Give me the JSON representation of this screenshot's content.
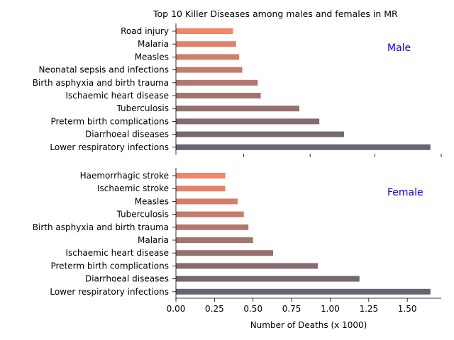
{
  "chart_data": {
    "type": "bar",
    "orientation": "horizontal",
    "title": "Top 10 Killer Diseases among males and females in MR",
    "xlabel": "Number of Deaths (x 1000)",
    "xlim": [
      0,
      1.72
    ],
    "xticks": [
      "0.00",
      "0.25",
      "0.50",
      "0.75",
      "1.00",
      "1.25",
      "1.50"
    ],
    "xtick_values": [
      0,
      0.25,
      0.5,
      0.75,
      1.0,
      1.25,
      1.5
    ],
    "grid": false,
    "label_color": "#0000ff",
    "bar_color_start": "#f0856a",
    "bar_color_end": "#666670",
    "panels": [
      {
        "label": "Male",
        "categories": [
          "Road injury",
          "Malaria",
          "Measles",
          "Neonatal sepsis and infections",
          "Birth asphyxia and birth trauma",
          "Ischaemic heart disease",
          "Tuberculosis",
          "Preterm birth complications",
          "Diarrhoeal diseases",
          "Lower respiratory infections"
        ],
        "values": [
          0.37,
          0.39,
          0.41,
          0.43,
          0.53,
          0.55,
          0.8,
          0.93,
          1.09,
          1.65
        ]
      },
      {
        "label": "Female",
        "categories": [
          "Haemorrhagic stroke",
          "Ischaemic stroke",
          "Measles",
          "Tuberculosis",
          "Birth asphyxia and birth trauma",
          "Malaria",
          "Ischaemic heart disease",
          "Preterm birth complications",
          "Diarrhoeal diseases",
          "Lower respiratory infections"
        ],
        "values": [
          0.32,
          0.32,
          0.4,
          0.44,
          0.47,
          0.5,
          0.63,
          0.92,
          1.19,
          1.65
        ]
      }
    ]
  }
}
